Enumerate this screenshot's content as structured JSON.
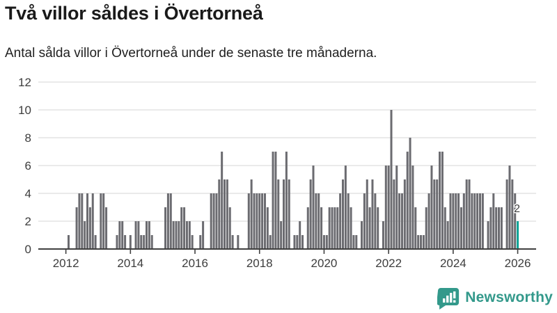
{
  "header": {
    "title": "Två villor såldes i Övertorneå",
    "subtitle": "Antal sålda villor i Övertorneå under de senaste tre månaderna."
  },
  "chart_data": {
    "type": "bar",
    "title": "Två villor såldes i Övertorneå",
    "subtitle": "Antal sålda villor i Övertorneå under de senaste tre månaderna.",
    "frequency": "monthly",
    "x_start": "2011-03",
    "x_end": "2026-01",
    "values": [
      0,
      0,
      0,
      0,
      0,
      0,
      0,
      0,
      0,
      0,
      0,
      1,
      0,
      0,
      3,
      4,
      4,
      2,
      4,
      3,
      4,
      1,
      0,
      4,
      4,
      3,
      0,
      0,
      0,
      1,
      2,
      2,
      1,
      0,
      1,
      0,
      2,
      2,
      1,
      1,
      2,
      2,
      1,
      0,
      0,
      0,
      0,
      3,
      4,
      4,
      2,
      2,
      2,
      3,
      3,
      2,
      2,
      1,
      0,
      0,
      1,
      2,
      0,
      0,
      4,
      4,
      4,
      5,
      7,
      5,
      5,
      3,
      1,
      0,
      1,
      0,
      0,
      0,
      4,
      5,
      4,
      4,
      4,
      4,
      4,
      3,
      1,
      7,
      7,
      5,
      2,
      5,
      7,
      5,
      0,
      1,
      1,
      2,
      1,
      0,
      3,
      5,
      6,
      4,
      4,
      3,
      1,
      1,
      3,
      3,
      3,
      3,
      4,
      5,
      6,
      4,
      3,
      1,
      1,
      0,
      2,
      4,
      5,
      3,
      5,
      4,
      3,
      0,
      2,
      6,
      6,
      10,
      5,
      6,
      4,
      4,
      5,
      7,
      8,
      6,
      3,
      1,
      1,
      1,
      3,
      4,
      6,
      5,
      5,
      7,
      7,
      3,
      2,
      4,
      4,
      4,
      4,
      3,
      4,
      5,
      5,
      4,
      4,
      4,
      4,
      4,
      0,
      2,
      3,
      4,
      3,
      3,
      3,
      0,
      5,
      6,
      5,
      4,
      2
    ],
    "highlight": {
      "index": 178,
      "label": "2",
      "color": "#0aa396"
    },
    "bar_color": "#6b6b70",
    "grid_color": "#e4e4e4",
    "axis_color": "#404040",
    "tick_label_color": "#3d3d3d",
    "ylim": [
      0,
      12
    ],
    "yticks": [
      0,
      2,
      4,
      6,
      8,
      10,
      12
    ],
    "xtick_years": [
      "2012",
      "2014",
      "2016",
      "2018",
      "2020",
      "2022",
      "2024",
      "2026"
    ],
    "legend": "none",
    "gridlines": "horizontal"
  },
  "branding": {
    "logo_text": "Newsworthy",
    "logo_color": "#33998b",
    "logo_icon": "newsworthy-speech-bubble-bars-icon"
  }
}
